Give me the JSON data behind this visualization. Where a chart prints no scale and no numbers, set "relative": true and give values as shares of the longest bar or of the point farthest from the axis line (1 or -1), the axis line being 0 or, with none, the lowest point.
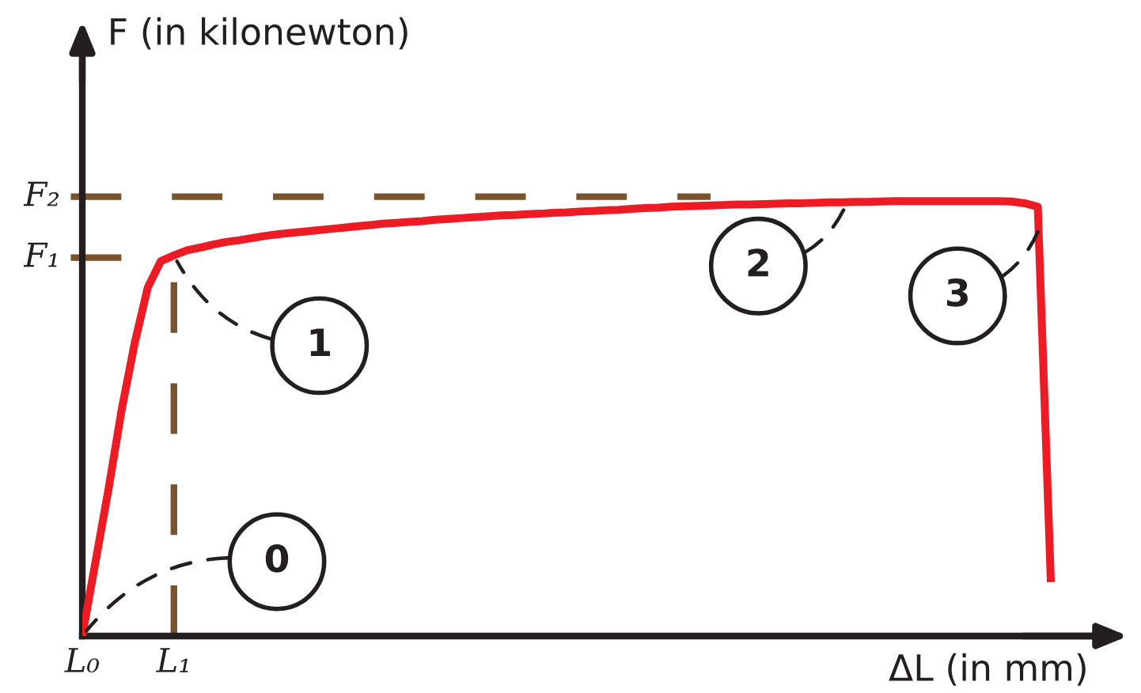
{
  "chart_data": {
    "type": "line",
    "xlabel": "ΔL (in mm)",
    "ylabel": "F (in kilonewton)",
    "relative": true,
    "categories": [
      "L₀",
      null,
      null,
      null,
      null,
      null,
      null,
      "L₁",
      null,
      null,
      null,
      null,
      null,
      null,
      null,
      null,
      null,
      null,
      null,
      null,
      null,
      null,
      null,
      null,
      null,
      null,
      null,
      null,
      null,
      null,
      null,
      null,
      null,
      null,
      null,
      null,
      null,
      null,
      null,
      null,
      null,
      null,
      null,
      null,
      null,
      null,
      null,
      null,
      null,
      null,
      null,
      null,
      null,
      null,
      null,
      null,
      null,
      null,
      null,
      null,
      null,
      null,
      null,
      null,
      null,
      null,
      null,
      null,
      null,
      null,
      null,
      null,
      null,
      null,
      null
    ],
    "series": [
      {
        "color": "#ed1c24",
        "values": [
          0,
          0.169,
          0.337,
          0.519,
          0.673,
          0.801,
          0.862,
          0.875,
          0.887,
          0.893,
          0.9,
          0.906,
          0.91,
          0.915,
          0.92,
          0.924,
          0.927,
          0.93,
          0.933,
          0.936,
          0.939,
          0.942,
          0.945,
          0.948,
          0.95,
          0.952,
          0.954,
          0.957,
          0.959,
          0.961,
          0.963,
          0.965,
          0.967,
          0.968,
          0.97,
          0.971,
          0.973,
          0.974,
          0.976,
          0.977,
          0.979,
          0.98,
          0.982,
          0.984,
          0.985,
          0.987,
          0.988,
          0.989,
          0.99,
          0.991,
          0.992,
          0.992,
          0.993,
          0.994,
          0.995,
          0.995,
          0.996,
          0.997,
          0.997,
          0.998,
          0.998,
          0.999,
          1.0,
          1.0,
          1.0,
          1.0,
          1.0,
          1.0,
          1.0,
          1.0,
          1.0,
          0.999,
          0.995,
          0.987,
          0.124
        ]
      }
    ],
    "ref_lines": [
      {
        "axis": "y",
        "value": 0.87,
        "label": "F₁",
        "color": "#7a522e",
        "line_style": "dashed"
      },
      {
        "axis": "y",
        "value": 1.01,
        "label": "F₂",
        "color": "#7a522e",
        "line_style": "dashed"
      },
      {
        "axis": "x",
        "value": "L₁",
        "color": "#7a522e",
        "line_style": "dashed"
      }
    ],
    "annotations": [
      {
        "text": "0",
        "x": "L₀",
        "y": 0
      },
      {
        "text": "1",
        "x": "L₁",
        "y": 0.875
      },
      "2",
      "3"
    ]
  }
}
